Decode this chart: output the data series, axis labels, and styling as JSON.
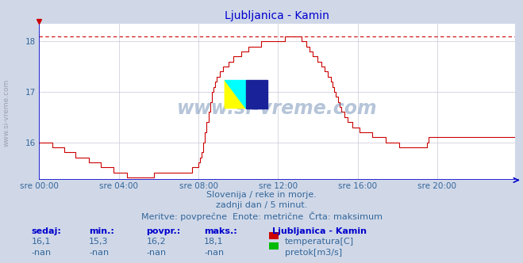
{
  "title": "Ljubljanica - Kamin",
  "bg_color": "#d0d8e8",
  "plot_bg_color": "#ffffff",
  "grid_color": "#c8c8d8",
  "axis_color": "#0000cc",
  "x_label_color": "#336699",
  "text_color": "#336699",
  "line_color": "#cc0000",
  "dashed_max_color": "#cc0000",
  "xlim": [
    0,
    287
  ],
  "ylim": [
    15.25,
    18.35
  ],
  "yticks": [
    16,
    17,
    18
  ],
  "xtick_positions": [
    0,
    48,
    96,
    144,
    192,
    240
  ],
  "xtick_labels": [
    "sre 00:00",
    "sre 04:00",
    "sre 08:00",
    "sre 12:00",
    "sre 16:00",
    "sre 20:00"
  ],
  "max_value": 18.1,
  "watermark": "www.si-vreme.com",
  "left_label": "www.si-vreme.com",
  "subtitle1": "Slovenija / reke in morje.",
  "subtitle2": "zadnji dan / 5 minut.",
  "subtitle3": "Meritve: povprečne  Enote: metrične  Črta: maksimum",
  "legend_title": "Ljubljanica - Kamin",
  "legend_items": [
    {
      "label": "temperatura[C]",
      "color": "#cc0000"
    },
    {
      "label": "pretok[m3/s]",
      "color": "#00bb00"
    }
  ],
  "stats_headers": [
    "sedaj:",
    "min.:",
    "povpr.:",
    "maks.:"
  ],
  "stats_row1": [
    "16,1",
    "15,3",
    "16,2",
    "18,1"
  ],
  "stats_row2": [
    "-nan",
    "-nan",
    "-nan",
    "-nan"
  ],
  "temperature_data": [
    16.0,
    16.0,
    16.0,
    16.0,
    16.0,
    16.0,
    16.0,
    16.0,
    15.9,
    15.9,
    15.9,
    15.9,
    15.9,
    15.9,
    15.9,
    15.8,
    15.8,
    15.8,
    15.8,
    15.8,
    15.8,
    15.8,
    15.7,
    15.7,
    15.7,
    15.7,
    15.7,
    15.7,
    15.7,
    15.7,
    15.6,
    15.6,
    15.6,
    15.6,
    15.6,
    15.6,
    15.6,
    15.5,
    15.5,
    15.5,
    15.5,
    15.5,
    15.5,
    15.5,
    15.5,
    15.4,
    15.4,
    15.4,
    15.4,
    15.4,
    15.4,
    15.4,
    15.4,
    15.3,
    15.3,
    15.3,
    15.3,
    15.3,
    15.3,
    15.3,
    15.3,
    15.3,
    15.3,
    15.3,
    15.3,
    15.3,
    15.3,
    15.3,
    15.3,
    15.4,
    15.4,
    15.4,
    15.4,
    15.4,
    15.4,
    15.4,
    15.4,
    15.4,
    15.4,
    15.4,
    15.4,
    15.4,
    15.4,
    15.4,
    15.4,
    15.4,
    15.4,
    15.4,
    15.4,
    15.4,
    15.4,
    15.4,
    15.5,
    15.5,
    15.5,
    15.5,
    15.6,
    15.7,
    15.8,
    16.0,
    16.2,
    16.4,
    16.6,
    16.8,
    17.0,
    17.1,
    17.2,
    17.3,
    17.3,
    17.4,
    17.4,
    17.5,
    17.5,
    17.5,
    17.6,
    17.6,
    17.6,
    17.7,
    17.7,
    17.7,
    17.7,
    17.7,
    17.8,
    17.8,
    17.8,
    17.8,
    17.9,
    17.9,
    17.9,
    17.9,
    17.9,
    17.9,
    17.9,
    17.9,
    18.0,
    18.0,
    18.0,
    18.0,
    18.0,
    18.0,
    18.0,
    18.0,
    18.0,
    18.0,
    18.0,
    18.0,
    18.0,
    18.0,
    18.1,
    18.1,
    18.1,
    18.1,
    18.1,
    18.1,
    18.1,
    18.1,
    18.1,
    18.1,
    18.0,
    18.0,
    18.0,
    17.9,
    17.9,
    17.8,
    17.8,
    17.7,
    17.7,
    17.7,
    17.6,
    17.6,
    17.5,
    17.5,
    17.4,
    17.4,
    17.3,
    17.3,
    17.2,
    17.1,
    17.0,
    16.9,
    16.8,
    16.7,
    16.6,
    16.6,
    16.5,
    16.5,
    16.4,
    16.4,
    16.4,
    16.3,
    16.3,
    16.3,
    16.3,
    16.2,
    16.2,
    16.2,
    16.2,
    16.2,
    16.2,
    16.2,
    16.2,
    16.1,
    16.1,
    16.1,
    16.1,
    16.1,
    16.1,
    16.1,
    16.1,
    16.0,
    16.0,
    16.0,
    16.0,
    16.0,
    16.0,
    16.0,
    16.0,
    15.9,
    15.9,
    15.9,
    15.9,
    15.9,
    15.9,
    15.9,
    15.9,
    15.9,
    15.9,
    15.9,
    15.9,
    15.9,
    15.9,
    15.9,
    15.9,
    15.9,
    16.0,
    16.1,
    16.1,
    16.1,
    16.1,
    16.1,
    16.1,
    16.1,
    16.1,
    16.1,
    16.1,
    16.1,
    16.1,
    16.1,
    16.1,
    16.1,
    16.1,
    16.1,
    16.1,
    16.1,
    16.1,
    16.1,
    16.1,
    16.1,
    16.1,
    16.1,
    16.1,
    16.1,
    16.1,
    16.1,
    16.1,
    16.1,
    16.1,
    16.1,
    16.1,
    16.1,
    16.1,
    16.1,
    16.1,
    16.1,
    16.1,
    16.1,
    16.1,
    16.1,
    16.1,
    16.1,
    16.1,
    16.1,
    16.1,
    16.1,
    16.1,
    16.1,
    16.1,
    16.1
  ]
}
